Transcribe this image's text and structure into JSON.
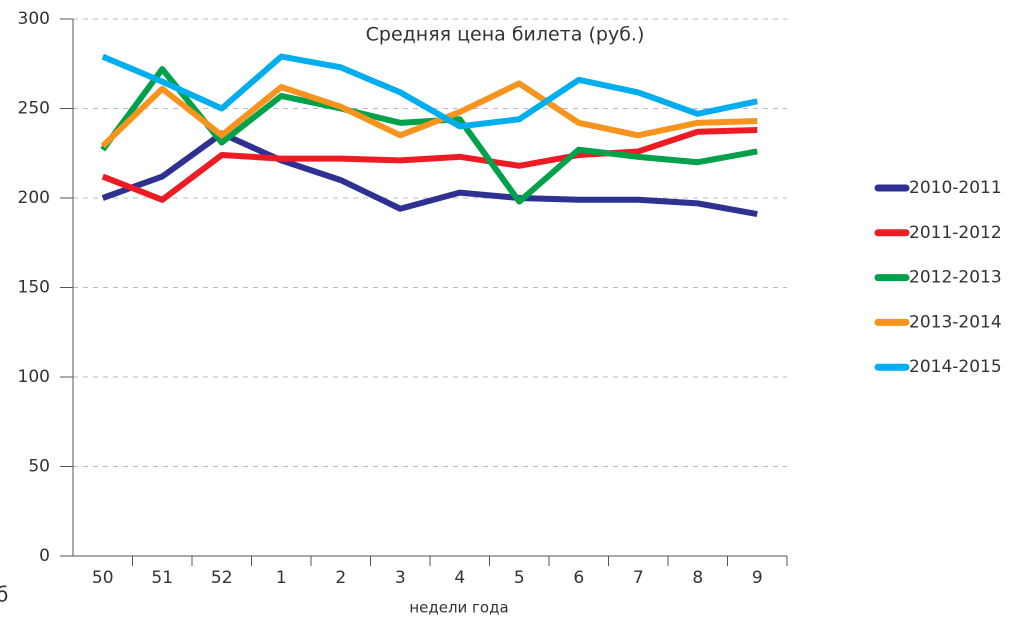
{
  "chart_data": {
    "type": "line",
    "title": "Средняя цена билета (руб.)",
    "xlabel": "недели года",
    "annotation": "б",
    "categories": [
      "50",
      "51",
      "52",
      "1",
      "2",
      "3",
      "4",
      "5",
      "6",
      "7",
      "8",
      "9"
    ],
    "series": [
      {
        "name": "2010-2011",
        "color": "#2e3192",
        "values": [
          200,
          212,
          236,
          221,
          210,
          194,
          203,
          200,
          199,
          199,
          197,
          191
        ]
      },
      {
        "name": "2011-2012",
        "color": "#ed1c24",
        "values": [
          212,
          199,
          224,
          222,
          222,
          221,
          223,
          218,
          224,
          226,
          237,
          238
        ]
      },
      {
        "name": "2012-2013",
        "color": "#00a14b",
        "values": [
          227,
          272,
          231,
          257,
          250,
          242,
          244,
          198,
          227,
          223,
          220,
          226
        ]
      },
      {
        "name": "2013-2014",
        "color": "#f7941d",
        "values": [
          229,
          261,
          235,
          262,
          251,
          235,
          248,
          264,
          242,
          235,
          242,
          243
        ]
      },
      {
        "name": "2014-2015",
        "color": "#00aeef",
        "values": [
          279,
          265,
          250,
          279,
          273,
          259,
          240,
          244,
          266,
          259,
          247,
          254
        ]
      }
    ],
    "ylim": [
      0,
      300
    ],
    "yticks": [
      0,
      50,
      100,
      150,
      200,
      250,
      300
    ],
    "grid": true,
    "legend": "right"
  }
}
